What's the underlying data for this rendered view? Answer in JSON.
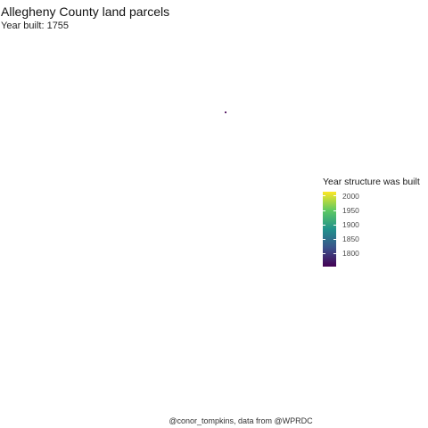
{
  "title": "Allegheny County land parcels",
  "subtitle": "Year built: 1755",
  "caption": "@conor_tompkins, data from @WPRDC",
  "legend": {
    "title": "Year structure was built",
    "min": 1755,
    "max": 2015,
    "ticks": [
      {
        "value": 2000,
        "label": "2000"
      },
      {
        "value": 1950,
        "label": "1950"
      },
      {
        "value": 1900,
        "label": "1900"
      },
      {
        "value": 1850,
        "label": "1850"
      },
      {
        "value": 1800,
        "label": "1800"
      }
    ],
    "palette": "viridis",
    "colors": [
      "#440154",
      "#3b528b",
      "#21918c",
      "#5ec962",
      "#fde725"
    ]
  },
  "parcels": [
    {
      "year_built": 1755,
      "color": "#440154"
    }
  ]
}
